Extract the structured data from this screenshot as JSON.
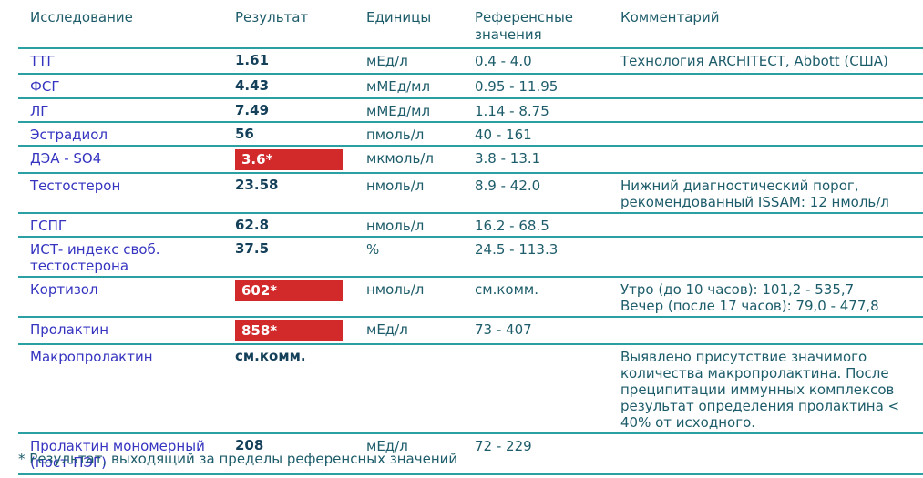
{
  "table": {
    "columns": [
      "Исследование",
      "Результат",
      "Единицы",
      "Референсные значения",
      "Комментарий"
    ],
    "rows": [
      {
        "test": "ТТГ",
        "result": "1.61",
        "out_of_range": false,
        "units": "мЕд/л",
        "ref": "0.4 - 4.0",
        "comment": "Технология ARCHITECT, Abbott (США)"
      },
      {
        "test": "ФСГ",
        "result": "4.43",
        "out_of_range": false,
        "units": "мМЕд/мл",
        "ref": "0.95 - 11.95",
        "comment": ""
      },
      {
        "test": "ЛГ",
        "result": "7.49",
        "out_of_range": false,
        "units": "мМЕд/мл",
        "ref": "1.14 - 8.75",
        "comment": ""
      },
      {
        "test": "Эстрадиол",
        "result": "56",
        "out_of_range": false,
        "units": "пмоль/л",
        "ref": "40 - 161",
        "comment": ""
      },
      {
        "test": "ДЭА - SO4",
        "result": "3.6*",
        "out_of_range": true,
        "units": "мкмоль/л",
        "ref": "3.8 - 13.1",
        "comment": ""
      },
      {
        "test": "Тестостерон",
        "result": "23.58",
        "out_of_range": false,
        "units": "нмоль/л",
        "ref": "8.9 - 42.0",
        "comment": "Нижний диагностический порог,\nрекомендованный ISSAM: 12 нмоль/л"
      },
      {
        "test": "ГСПГ",
        "result": "62.8",
        "out_of_range": false,
        "units": "нмоль/л",
        "ref": "16.2 - 68.5",
        "comment": ""
      },
      {
        "test": "ИСТ- индекс своб.\nтестостерона",
        "result": "37.5",
        "out_of_range": false,
        "units": "%",
        "ref": "24.5 - 113.3",
        "comment": ""
      },
      {
        "test": "Кортизол",
        "result": "602*",
        "out_of_range": true,
        "units": "нмоль/л",
        "ref": "см.комм.",
        "comment": "Утро (до 10 часов): 101,2 - 535,7\nВечер (после 17 часов): 79,0 - 477,8"
      },
      {
        "test": "Пролактин",
        "result": "858*",
        "out_of_range": true,
        "units": "мЕд/л",
        "ref": "73 - 407",
        "comment": ""
      },
      {
        "test": "Макропролактин",
        "result": "см.комм.",
        "out_of_range": false,
        "units": "",
        "ref": "",
        "comment": "Выявлено присутствие значимого\nколичества макропролактина. После\nпреципитации иммунных комплексов\nрезультат определения пролактина <\n40% от исходного."
      },
      {
        "test": "Пролактин мономерный\n(пост-ПЭГ)",
        "result": "208",
        "out_of_range": false,
        "units": "мЕд/л",
        "ref": "72 - 229",
        "comment": ""
      }
    ]
  },
  "footnote": "* Результат, выходящий за пределы референсных значений",
  "colors": {
    "test_name": "#3534c0",
    "result_text": "#14405a",
    "secondary_text": "#1d5c6a",
    "grid_line": "#2aa0a2",
    "out_of_range_bg": "#d2292b",
    "out_of_range_text": "#ffffff"
  }
}
